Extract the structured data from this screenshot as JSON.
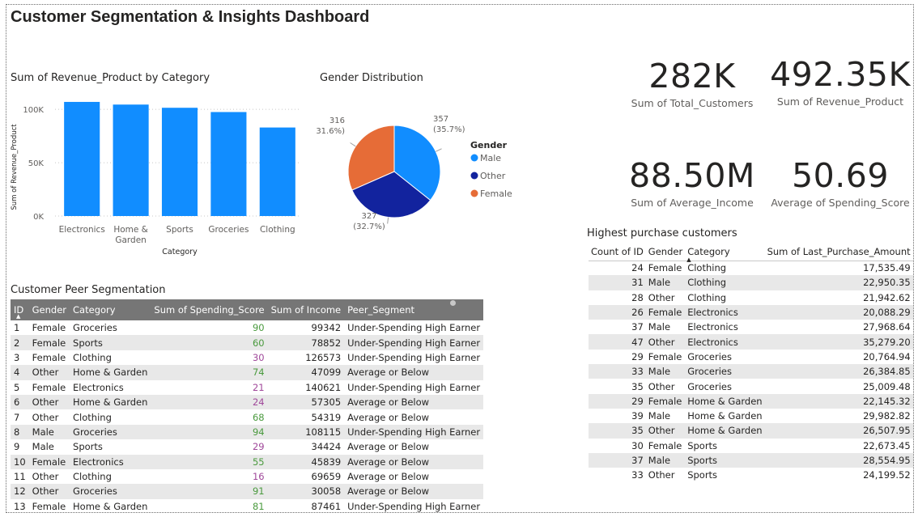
{
  "page": {
    "title": "Customer Segmentation & Insights Dashboard"
  },
  "bar_visual": {
    "title": "Sum of Revenue_Product by Category",
    "chart_data": {
      "type": "bar",
      "categories": [
        "Electronics",
        "Home &\nGarden",
        "Sports",
        "Groceries",
        "Clothing"
      ],
      "values": [
        107000,
        104500,
        101500,
        97500,
        83000
      ],
      "xlabel": "Category",
      "ylabel": "Sum of Revenue_Product",
      "ylim": [
        0,
        110000
      ],
      "yticks": [
        0,
        50000,
        100000
      ],
      "ytick_labels": [
        "0K",
        "50K",
        "100K"
      ],
      "grid": true,
      "color": "#118DFF"
    }
  },
  "pie_visual": {
    "title": "Gender Distribution",
    "chart_data": {
      "type": "pie",
      "slices": [
        {
          "name": "Male",
          "value": 357,
          "label": "357",
          "pct": "(35.7%)",
          "color": "#118DFF"
        },
        {
          "name": "Other",
          "value": 327,
          "label": "327",
          "pct": "(32.7%)",
          "color": "#12239E"
        },
        {
          "name": "Female",
          "value": 316,
          "label": "316",
          "pct": "(31.6%)",
          "color": "#E66C37"
        }
      ],
      "legend_title": "Gender",
      "legend_position": "right"
    }
  },
  "kpis": [
    {
      "value": "282K",
      "label": "Sum of Total_Customers"
    },
    {
      "value": "492.35K",
      "label": "Sum of Revenue_Product"
    },
    {
      "value": "88.50M",
      "label": "Sum of Average_Income"
    },
    {
      "value": "50.69",
      "label": "Average of Spending_Score"
    }
  ],
  "peer_table": {
    "title": "Customer Peer Segmentation",
    "columns": [
      "ID",
      "Gender",
      "Category",
      "Sum of Spending_Score",
      "Sum of Income",
      "Peer_Segment"
    ],
    "sort_indicator": "▲",
    "colors": {
      "score_high": "#4a9a3e",
      "score_low": "#a0489a"
    },
    "rows": [
      [
        "1",
        "Female",
        "Groceries",
        "90",
        "99342",
        "Under-Spending High Earner"
      ],
      [
        "2",
        "Female",
        "Sports",
        "60",
        "78852",
        "Under-Spending High Earner"
      ],
      [
        "3",
        "Female",
        "Clothing",
        "30",
        "126573",
        "Under-Spending High Earner"
      ],
      [
        "4",
        "Other",
        "Home & Garden",
        "74",
        "47099",
        "Average or Below"
      ],
      [
        "5",
        "Female",
        "Electronics",
        "21",
        "140621",
        "Under-Spending High Earner"
      ],
      [
        "6",
        "Other",
        "Home & Garden",
        "24",
        "57305",
        "Average or Below"
      ],
      [
        "7",
        "Other",
        "Clothing",
        "68",
        "54319",
        "Average or Below"
      ],
      [
        "8",
        "Male",
        "Groceries",
        "94",
        "108115",
        "Under-Spending High Earner"
      ],
      [
        "9",
        "Male",
        "Sports",
        "29",
        "34424",
        "Average or Below"
      ],
      [
        "10",
        "Female",
        "Electronics",
        "55",
        "45839",
        "Average or Below"
      ],
      [
        "11",
        "Other",
        "Clothing",
        "16",
        "69659",
        "Average or Below"
      ],
      [
        "12",
        "Other",
        "Groceries",
        "91",
        "30058",
        "Average or Below"
      ],
      [
        "13",
        "Female",
        "Home & Garden",
        "81",
        "87461",
        "Under-Spending High Earner"
      ]
    ]
  },
  "purchase_table": {
    "title": "Highest purchase customers",
    "columns": [
      "Count of ID",
      "Gender",
      "Category",
      "Sum of Last_Purchase_Amount"
    ],
    "sort_indicator": "▲",
    "rows": [
      [
        "24",
        "Female",
        "Clothing",
        "17,535.49"
      ],
      [
        "31",
        "Male",
        "Clothing",
        "22,950.35"
      ],
      [
        "28",
        "Other",
        "Clothing",
        "21,942.62"
      ],
      [
        "26",
        "Female",
        "Electronics",
        "20,088.29"
      ],
      [
        "37",
        "Male",
        "Electronics",
        "27,968.64"
      ],
      [
        "47",
        "Other",
        "Electronics",
        "35,279.20"
      ],
      [
        "29",
        "Female",
        "Groceries",
        "20,764.94"
      ],
      [
        "33",
        "Male",
        "Groceries",
        "26,384.85"
      ],
      [
        "35",
        "Other",
        "Groceries",
        "25,009.48"
      ],
      [
        "29",
        "Female",
        "Home & Garden",
        "22,145.32"
      ],
      [
        "39",
        "Male",
        "Home & Garden",
        "29,982.82"
      ],
      [
        "35",
        "Other",
        "Home & Garden",
        "26,507.95"
      ],
      [
        "30",
        "Female",
        "Sports",
        "22,673.45"
      ],
      [
        "37",
        "Male",
        "Sports",
        "28,554.95"
      ],
      [
        "33",
        "Other",
        "Sports",
        "24,199.52"
      ]
    ]
  }
}
